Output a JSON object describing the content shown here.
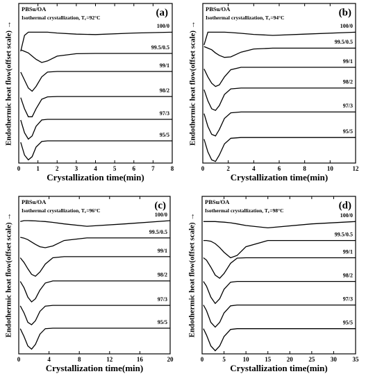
{
  "chart_data": [
    {
      "type": "line",
      "title": "PBSu/OA",
      "subtitle": [
        "Isothermal crystallization, T",
        "c",
        "=92°C"
      ],
      "panel_label": "(a)",
      "x_label": "Crystallization time(min)",
      "y_label": "Endothermic heat flow(offset scale) →",
      "xlim": [
        0,
        8
      ],
      "xticks": [
        0,
        1,
        2,
        3,
        4,
        5,
        6,
        7,
        8
      ],
      "ylim": [
        0,
        100
      ],
      "x": [
        0.1,
        0.3,
        0.5,
        0.7,
        0.9,
        1.2,
        1.5,
        2,
        3,
        4,
        6,
        8
      ],
      "series": [
        {
          "name": "100/0",
          "color": "#000000",
          "values": [
            70,
            80,
            82,
            82,
            82,
            82,
            82,
            81.5,
            80.8,
            80.5,
            81.5,
            82
          ]
        },
        {
          "name": "99.5/0.5",
          "color": "#000000",
          "values": [
            71,
            70,
            69,
            67,
            65,
            63,
            64,
            67,
            68.5,
            68.7,
            68.7,
            68.7
          ]
        },
        {
          "name": "99/1",
          "color": "#000000",
          "values": [
            57,
            52,
            47,
            45,
            48,
            54,
            57,
            57.4,
            57.4,
            57.4,
            57.4,
            57.4
          ]
        },
        {
          "name": "98/2",
          "color": "#000000",
          "values": [
            41,
            34,
            29,
            29,
            34,
            40,
            41.5,
            41.7,
            41.7,
            41.7,
            41.7,
            41.7
          ]
        },
        {
          "name": "97/3",
          "color": "#000000",
          "values": [
            27,
            19,
            15,
            17,
            23,
            27,
            27.4,
            27.4,
            27.4,
            27.4,
            27.4,
            27.4
          ]
        },
        {
          "name": "95/5",
          "color": "#000000",
          "values": [
            13,
            5,
            2,
            4,
            10,
            13.5,
            13.9,
            13.9,
            13.9,
            13.9,
            13.9,
            13.9
          ]
        }
      ]
    },
    {
      "type": "line",
      "title": "PBSu/OA",
      "subtitle": [
        "Isothermal crystallization, T",
        "c",
        "=94°C"
      ],
      "panel_label": "(b)",
      "x_label": "Crystallization time(min)",
      "y_label": "Endothermic heat flow(offset scale) →",
      "xlim": [
        0,
        12
      ],
      "xticks": [
        0,
        2,
        4,
        6,
        8,
        10,
        12
      ],
      "ylim": [
        0,
        100
      ],
      "x": [
        0.1,
        0.4,
        0.7,
        1,
        1.3,
        1.7,
        2.2,
        3,
        4,
        5.5,
        8,
        12
      ],
      "series": [
        {
          "name": "100/0",
          "color": "#000000",
          "values": [
            74,
            82,
            82,
            82,
            82,
            82,
            81.8,
            81.3,
            80.6,
            80,
            80.8,
            82
          ]
        },
        {
          "name": "99.5/0.5",
          "color": "#000000",
          "values": [
            73,
            72,
            71,
            69,
            67.5,
            66.2,
            66.5,
            69.5,
            71.5,
            72,
            72,
            72
          ]
        },
        {
          "name": "99/1",
          "color": "#000000",
          "values": [
            59,
            54,
            50,
            48,
            49,
            54,
            58.5,
            60,
            60,
            60,
            60,
            60
          ]
        },
        {
          "name": "98/2",
          "color": "#000000",
          "values": [
            46,
            39,
            34,
            33,
            36,
            43,
            46.5,
            47,
            47,
            47,
            47,
            47
          ]
        },
        {
          "name": "97/3",
          "color": "#000000",
          "values": [
            31,
            23,
            18,
            17,
            21,
            28,
            31.5,
            32,
            32,
            32,
            32,
            32
          ]
        },
        {
          "name": "95/5",
          "color": "#000000",
          "values": [
            15,
            7,
            2,
            1,
            5,
            12,
            15.5,
            16,
            16,
            16,
            16,
            16
          ]
        }
      ]
    },
    {
      "type": "line",
      "title": "PBSu/OA",
      "subtitle": [
        "Isothermal crystallization, T",
        "c",
        "=96°C"
      ],
      "panel_label": "(c)",
      "x_label": "Crystallization time(min)",
      "y_label": "Endothermic heat flow(offset scale) →",
      "xlim": [
        0,
        20
      ],
      "xticks": [
        0,
        4,
        8,
        12,
        16,
        20
      ],
      "ylim": [
        0,
        100
      ],
      "x": [
        0.2,
        0.7,
        1.2,
        1.7,
        2.2,
        2.8,
        3.5,
        4.5,
        6,
        9,
        14,
        20
      ],
      "series": [
        {
          "name": "100/0",
          "color": "#000000",
          "values": [
            84,
            84.6,
            84.6,
            84.5,
            84.4,
            84.2,
            84,
            83.5,
            82.5,
            81,
            82.5,
            84.6
          ]
        },
        {
          "name": "99.5/0.5",
          "color": "#000000",
          "values": [
            74,
            73.5,
            72.5,
            71,
            69.5,
            68,
            67.4,
            68.5,
            72,
            73.6,
            73.6,
            73.6
          ]
        },
        {
          "name": "99/1",
          "color": "#000000",
          "values": [
            61,
            58,
            54,
            50.5,
            49.3,
            52,
            57,
            61,
            61.7,
            61.7,
            61.7,
            61.7
          ]
        },
        {
          "name": "98/2",
          "color": "#000000",
          "values": [
            46,
            42,
            36,
            33,
            35,
            40.5,
            45,
            46.3,
            46.3,
            46.3,
            46.3,
            46.3
          ]
        },
        {
          "name": "97/3",
          "color": "#000000",
          "values": [
            30.5,
            26,
            20,
            18.5,
            21,
            27,
            30.3,
            30.8,
            30.8,
            30.8,
            30.8,
            30.8
          ]
        },
        {
          "name": "95/5",
          "color": "#000000",
          "values": [
            16,
            11,
            5,
            3,
            6,
            12.5,
            16,
            16.3,
            16.3,
            16.3,
            16.3,
            16.3
          ]
        }
      ]
    },
    {
      "type": "line",
      "title": "PBSu/OA",
      "subtitle": [
        "Isothermal crystallization, T",
        "c",
        "=98°C"
      ],
      "panel_label": "(d)",
      "x_label": "Crystallization time(min)",
      "y_label": "Endothermic heat flow(offset scale) →",
      "xlim": [
        0,
        35
      ],
      "xticks": [
        0,
        5,
        10,
        15,
        20,
        25,
        30,
        35
      ],
      "ylim": [
        0,
        100
      ],
      "x": [
        0.3,
        1,
        2,
        3,
        4,
        5,
        6.5,
        8,
        10,
        15,
        25,
        35
      ],
      "series": [
        {
          "name": "100/0",
          "color": "#000000",
          "values": [
            84,
            84,
            84,
            84,
            83.8,
            83.6,
            83.2,
            82.5,
            81.5,
            80,
            82.5,
            84
          ]
        },
        {
          "name": "99.5/0.5",
          "color": "#000000",
          "values": [
            72,
            72,
            71.5,
            70,
            67.5,
            64.5,
            61,
            62.5,
            68,
            72,
            72,
            72
          ]
        },
        {
          "name": "99/1",
          "color": "#000000",
          "values": [
            61,
            59.5,
            55,
            50,
            48,
            51,
            57.5,
            60.8,
            61,
            61,
            61,
            61
          ]
        },
        {
          "name": "98/2",
          "color": "#000000",
          "values": [
            46,
            43,
            36,
            32,
            35,
            41,
            45.5,
            46,
            46,
            46,
            46,
            46
          ]
        },
        {
          "name": "97/3",
          "color": "#000000",
          "values": [
            31,
            27.5,
            20,
            17,
            20,
            26,
            30.5,
            31,
            31,
            31,
            31,
            31
          ]
        },
        {
          "name": "95/5",
          "color": "#000000",
          "values": [
            16,
            12,
            5,
            2,
            5,
            11,
            15.5,
            16,
            16,
            16,
            16,
            16
          ]
        }
      ]
    }
  ]
}
